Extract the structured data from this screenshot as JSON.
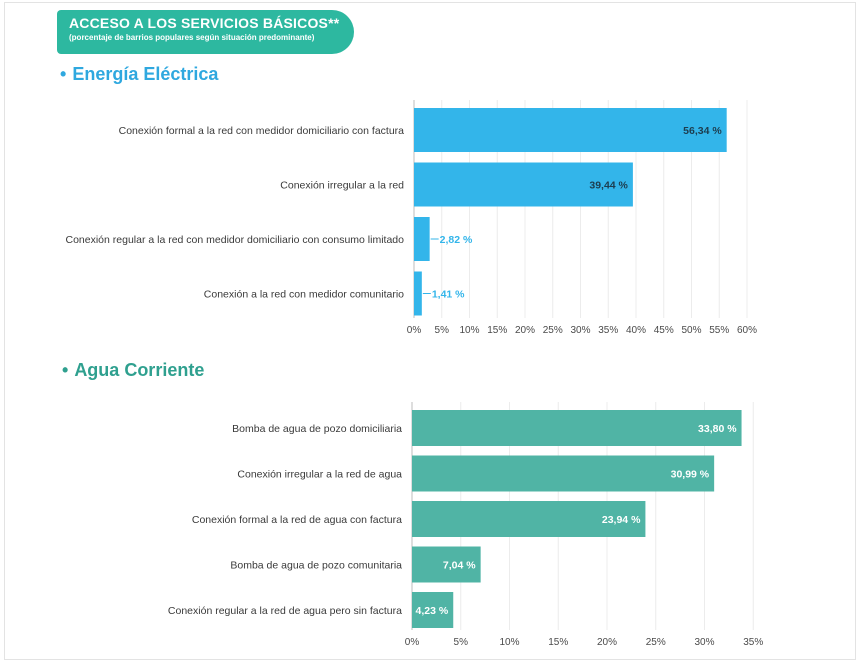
{
  "header": {
    "title": "ACCESO A LOS SERVICIOS BÁSICOS**",
    "subtitle": "(porcentaje de barrios populares según situación predominante)"
  },
  "colors": {
    "banner": "#2db8a0",
    "energy_bar": "#33b5ea",
    "water_bar": "#50b4a5",
    "energy_title": "#2fa8df",
    "water_title": "#2fa08f"
  },
  "chart_data": [
    {
      "type": "bar",
      "orientation": "horizontal",
      "title": "• Energía Eléctrica",
      "title_text": "Energía Eléctrica",
      "bullet": "•",
      "categories": [
        "Conexión formal a la red con medidor domiciliario con factura",
        "Conexión irregular a la red",
        "Conexión regular a la red con medidor domiciliario con consumo limitado",
        "Conexión a la red con medidor comunitario"
      ],
      "values": [
        56.34,
        39.44,
        2.82,
        1.41
      ],
      "value_labels": [
        "56,34 %",
        "39,44 %",
        "2,82 %",
        "1,41 %"
      ],
      "xlim": [
        0,
        60
      ],
      "ticks": [
        0,
        5,
        10,
        15,
        20,
        25,
        30,
        35,
        40,
        45,
        50,
        55,
        60
      ],
      "tick_labels": [
        "0%",
        "5%",
        "10%",
        "15%",
        "20%",
        "25%",
        "30%",
        "35%",
        "40%",
        "45%",
        "50%",
        "55%",
        "60%"
      ],
      "grid": true
    },
    {
      "type": "bar",
      "orientation": "horizontal",
      "title": "• Agua Corriente",
      "title_text": "Agua Corriente",
      "bullet": "•",
      "categories": [
        "Bomba de agua de pozo domiciliaria",
        "Conexión irregular a la red de agua",
        "Conexión formal a la red de agua con factura",
        "Bomba de agua de pozo comunitaria",
        "Conexión regular a la red de agua pero sin factura"
      ],
      "values": [
        33.8,
        30.99,
        23.94,
        7.04,
        4.23
      ],
      "value_labels": [
        "33,80 %",
        "30,99 %",
        "23,94 %",
        "7,04 %",
        "4,23 %"
      ],
      "xlim": [
        0,
        35
      ],
      "ticks": [
        0,
        5,
        10,
        15,
        20,
        25,
        30,
        35
      ],
      "tick_labels": [
        "0%",
        "5%",
        "10%",
        "15%",
        "20%",
        "25%",
        "30%",
        "35%"
      ],
      "grid": true
    }
  ]
}
